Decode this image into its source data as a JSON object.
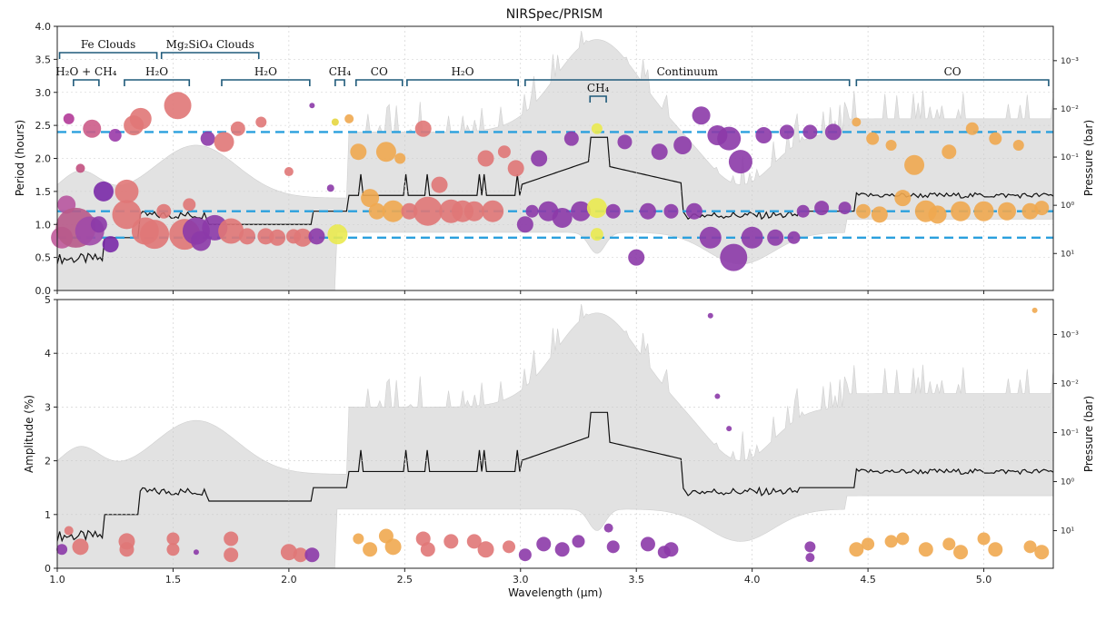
{
  "chart_data": {
    "type": "scatter",
    "title": "NIRSpec/PRISM",
    "xlabel": "Wavelength (μm)",
    "xlim": [
      1.0,
      5.3
    ],
    "x_ticks": [
      "1.0",
      "1.5",
      "2.0",
      "2.5",
      "3.0",
      "3.5",
      "4.0",
      "4.5",
      "5.0"
    ],
    "top": {
      "ylabel": "Period (hours)",
      "ylim": [
        0,
        4.0
      ],
      "y_ticks": [
        "0.0",
        "0.5",
        "1.0",
        "1.5",
        "2.0",
        "2.5",
        "3.0",
        "3.5",
        "4.0"
      ],
      "right_label": "Pressure (bar)",
      "right_ticks": [
        "10⁻³",
        "10⁻²",
        "10⁻¹",
        "10⁰",
        "10¹"
      ],
      "dashed_lines": [
        2.4,
        1.2,
        0.8
      ],
      "regions": [
        {
          "label": "Fe Clouds",
          "x0": 1.01,
          "x1": 1.43,
          "tier": 1
        },
        {
          "label": "Mg₂SiO₄ Clouds",
          "x0": 1.45,
          "x1": 1.87,
          "tier": 1
        },
        {
          "label": "H₂O + CH₄",
          "x0": 1.07,
          "x1": 1.18,
          "tier": 2
        },
        {
          "label": "H₂O",
          "x0": 1.29,
          "x1": 1.57,
          "tier": 2
        },
        {
          "label": "H₂O",
          "x0": 1.71,
          "x1": 2.09,
          "tier": 2
        },
        {
          "label": "CH₄",
          "x0": 2.2,
          "x1": 2.24,
          "tier": 2
        },
        {
          "label": "CO",
          "x0": 2.29,
          "x1": 2.49,
          "tier": 2
        },
        {
          "label": "H₂O",
          "x0": 2.51,
          "x1": 2.99,
          "tier": 2
        },
        {
          "label": "Continuum",
          "x0": 3.02,
          "x1": 4.42,
          "tier": 2
        },
        {
          "label": "CO",
          "x0": 4.45,
          "x1": 5.28,
          "tier": 2
        },
        {
          "label": "CH₄",
          "x0": 3.3,
          "x1": 3.37,
          "tier": 3
        }
      ],
      "points": [
        [
          1.02,
          0.8,
          12,
          "#c05a9a"
        ],
        [
          1.04,
          1.3,
          10,
          "#b856a0"
        ],
        [
          1.05,
          2.6,
          6,
          "#b23a98"
        ],
        [
          1.08,
          0.95,
          22,
          "#b85a8a"
        ],
        [
          1.1,
          1.85,
          5,
          "#c2507f"
        ],
        [
          1.14,
          0.9,
          16,
          "#a04aa8"
        ],
        [
          1.15,
          2.45,
          10,
          "#cc5c88"
        ],
        [
          1.18,
          1.0,
          9,
          "#8c3aa8"
        ],
        [
          1.2,
          1.5,
          11,
          "#7a2aa8"
        ],
        [
          1.23,
          0.7,
          9,
          "#7a2aa8"
        ],
        [
          1.25,
          2.35,
          7,
          "#9a3aa8"
        ],
        [
          1.3,
          1.15,
          16,
          "#e07777"
        ],
        [
          1.3,
          1.5,
          13,
          "#e07777"
        ],
        [
          1.33,
          2.5,
          11,
          "#e07777"
        ],
        [
          1.36,
          2.6,
          12,
          "#e07777"
        ],
        [
          1.38,
          0.9,
          15,
          "#e07777"
        ],
        [
          1.42,
          0.85,
          16,
          "#e07777"
        ],
        [
          1.46,
          1.2,
          8,
          "#e07777"
        ],
        [
          1.52,
          2.8,
          15,
          "#e07777"
        ],
        [
          1.55,
          0.85,
          17,
          "#e07777"
        ],
        [
          1.57,
          1.3,
          7,
          "#e07777"
        ],
        [
          1.6,
          0.9,
          15,
          "#8c3aa8"
        ],
        [
          1.62,
          0.75,
          11,
          "#8c3aa8"
        ],
        [
          1.65,
          2.3,
          8,
          "#8c3aa8"
        ],
        [
          1.68,
          0.95,
          14,
          "#8c3aa8"
        ],
        [
          1.72,
          2.25,
          11,
          "#e07777"
        ],
        [
          1.75,
          0.9,
          14,
          "#e07777"
        ],
        [
          1.78,
          2.45,
          8,
          "#e07777"
        ],
        [
          1.82,
          0.82,
          9,
          "#e07777"
        ],
        [
          1.88,
          2.55,
          6,
          "#e07777"
        ],
        [
          1.9,
          0.82,
          9,
          "#e07777"
        ],
        [
          1.95,
          0.8,
          9,
          "#e07777"
        ],
        [
          2.0,
          1.8,
          5,
          "#e07777"
        ],
        [
          2.02,
          0.82,
          8,
          "#e07777"
        ],
        [
          2.06,
          0.8,
          10,
          "#e07777"
        ],
        [
          2.1,
          2.8,
          3,
          "#8c3aa8"
        ],
        [
          2.12,
          0.82,
          9,
          "#8c3aa8"
        ],
        [
          2.18,
          1.55,
          4,
          "#8c3aa8"
        ],
        [
          2.2,
          2.55,
          4,
          "#e6d640"
        ],
        [
          2.21,
          0.85,
          11,
          "#eaea50"
        ],
        [
          2.26,
          2.6,
          5,
          "#f0a850"
        ],
        [
          2.3,
          2.1,
          9,
          "#f0a850"
        ],
        [
          2.35,
          1.4,
          10,
          "#f0a850"
        ],
        [
          2.38,
          1.2,
          9,
          "#f0a850"
        ],
        [
          2.42,
          2.1,
          11,
          "#f0a850"
        ],
        [
          2.45,
          1.2,
          12,
          "#f0a850"
        ],
        [
          2.48,
          2.0,
          6,
          "#f0a850"
        ],
        [
          2.52,
          1.2,
          9,
          "#e07777"
        ],
        [
          2.58,
          2.45,
          9,
          "#e07777"
        ],
        [
          2.6,
          1.2,
          16,
          "#e07777"
        ],
        [
          2.65,
          1.6,
          9,
          "#e07777"
        ],
        [
          2.7,
          1.2,
          13,
          "#e07777"
        ],
        [
          2.75,
          1.2,
          12,
          "#e07777"
        ],
        [
          2.8,
          1.2,
          11,
          "#e07777"
        ],
        [
          2.85,
          2.0,
          9,
          "#e07777"
        ],
        [
          2.88,
          1.2,
          12,
          "#e07777"
        ],
        [
          2.93,
          2.1,
          7,
          "#e07777"
        ],
        [
          2.98,
          1.85,
          9,
          "#e07777"
        ],
        [
          3.02,
          1.0,
          9,
          "#8c3aa8"
        ],
        [
          3.05,
          1.2,
          7,
          "#8c3aa8"
        ],
        [
          3.08,
          2.0,
          9,
          "#8c3aa8"
        ],
        [
          3.12,
          1.2,
          11,
          "#8c3aa8"
        ],
        [
          3.18,
          1.1,
          11,
          "#8c3aa8"
        ],
        [
          3.22,
          2.3,
          8,
          "#8c3aa8"
        ],
        [
          3.26,
          1.2,
          11,
          "#8c3aa8"
        ],
        [
          3.33,
          1.25,
          11,
          "#eaea50"
        ],
        [
          3.33,
          0.85,
          7,
          "#eaea50"
        ],
        [
          3.33,
          2.45,
          6,
          "#eaea50"
        ],
        [
          3.4,
          1.2,
          8,
          "#8c3aa8"
        ],
        [
          3.45,
          2.25,
          8,
          "#8c3aa8"
        ],
        [
          3.5,
          0.5,
          9,
          "#8c3aa8"
        ],
        [
          3.55,
          1.2,
          9,
          "#8c3aa8"
        ],
        [
          3.6,
          2.1,
          9,
          "#8c3aa8"
        ],
        [
          3.65,
          1.2,
          8,
          "#8c3aa8"
        ],
        [
          3.7,
          2.2,
          10,
          "#8c3aa8"
        ],
        [
          3.75,
          1.2,
          9,
          "#8c3aa8"
        ],
        [
          3.78,
          2.65,
          10,
          "#8c3aa8"
        ],
        [
          3.82,
          0.8,
          12,
          "#8c3aa8"
        ],
        [
          3.85,
          2.35,
          11,
          "#8c3aa8"
        ],
        [
          3.9,
          2.3,
          13,
          "#8c3aa8"
        ],
        [
          3.95,
          1.95,
          13,
          "#8c3aa8"
        ],
        [
          3.92,
          0.5,
          15,
          "#8c3aa8"
        ],
        [
          4.0,
          0.8,
          12,
          "#8c3aa8"
        ],
        [
          4.05,
          2.35,
          9,
          "#8c3aa8"
        ],
        [
          4.1,
          0.8,
          9,
          "#8c3aa8"
        ],
        [
          4.15,
          2.4,
          8,
          "#8c3aa8"
        ],
        [
          4.18,
          0.8,
          7,
          "#8c3aa8"
        ],
        [
          4.22,
          1.2,
          7,
          "#8c3aa8"
        ],
        [
          4.25,
          2.4,
          8,
          "#8c3aa8"
        ],
        [
          4.3,
          1.25,
          8,
          "#8c3aa8"
        ],
        [
          4.35,
          2.4,
          9,
          "#8c3aa8"
        ],
        [
          4.4,
          1.25,
          7,
          "#8c3aa8"
        ],
        [
          4.45,
          2.55,
          5,
          "#f0a850"
        ],
        [
          4.48,
          1.2,
          8,
          "#f0a850"
        ],
        [
          4.52,
          2.3,
          7,
          "#f0a850"
        ],
        [
          4.55,
          1.15,
          9,
          "#f0a850"
        ],
        [
          4.6,
          2.2,
          6,
          "#f0a850"
        ],
        [
          4.65,
          1.4,
          9,
          "#f0a850"
        ],
        [
          4.7,
          1.9,
          11,
          "#f0a850"
        ],
        [
          4.75,
          1.2,
          12,
          "#f0a850"
        ],
        [
          4.8,
          1.15,
          10,
          "#f0a850"
        ],
        [
          4.85,
          2.1,
          8,
          "#f0a850"
        ],
        [
          4.9,
          1.2,
          11,
          "#f0a850"
        ],
        [
          4.95,
          2.45,
          7,
          "#f0a850"
        ],
        [
          5.0,
          1.2,
          11,
          "#f0a850"
        ],
        [
          5.05,
          2.3,
          7,
          "#f0a850"
        ],
        [
          5.1,
          1.2,
          10,
          "#f0a850"
        ],
        [
          5.15,
          2.2,
          6,
          "#f0a850"
        ],
        [
          5.2,
          1.2,
          9,
          "#f0a850"
        ],
        [
          5.25,
          1.25,
          8,
          "#f0a850"
        ]
      ]
    },
    "bottom": {
      "ylabel": "Amplitude (%)",
      "ylim": [
        0,
        5
      ],
      "y_ticks": [
        "0",
        "1",
        "2",
        "3",
        "4",
        "5"
      ],
      "right_label": "Pressure (bar)",
      "right_ticks": [
        "10⁻³",
        "10⁻²",
        "10⁻¹",
        "10⁰",
        "10¹"
      ],
      "points": [
        [
          1.02,
          0.35,
          6,
          "#8c3aa8"
        ],
        [
          1.05,
          0.7,
          5,
          "#e07777"
        ],
        [
          1.1,
          0.4,
          9,
          "#e07777"
        ],
        [
          1.3,
          0.5,
          9,
          "#e07777"
        ],
        [
          1.3,
          0.35,
          8,
          "#e07777"
        ],
        [
          1.5,
          0.55,
          7,
          "#e07777"
        ],
        [
          1.5,
          0.35,
          7,
          "#e07777"
        ],
        [
          1.6,
          0.3,
          3,
          "#8c3aa8"
        ],
        [
          1.75,
          0.55,
          8,
          "#e07777"
        ],
        [
          1.75,
          0.25,
          8,
          "#e07777"
        ],
        [
          2.0,
          0.3,
          9,
          "#e07777"
        ],
        [
          2.05,
          0.25,
          8,
          "#e07777"
        ],
        [
          2.1,
          0.25,
          8,
          "#8c3aa8"
        ],
        [
          2.3,
          0.55,
          6,
          "#f0a850"
        ],
        [
          2.35,
          0.35,
          8,
          "#f0a850"
        ],
        [
          2.42,
          0.6,
          8,
          "#f0a850"
        ],
        [
          2.45,
          0.4,
          9,
          "#f0a850"
        ],
        [
          2.58,
          0.55,
          8,
          "#e07777"
        ],
        [
          2.6,
          0.35,
          8,
          "#e07777"
        ],
        [
          2.7,
          0.5,
          8,
          "#e07777"
        ],
        [
          2.8,
          0.5,
          8,
          "#e07777"
        ],
        [
          2.85,
          0.35,
          9,
          "#e07777"
        ],
        [
          2.95,
          0.4,
          7,
          "#e07777"
        ],
        [
          3.02,
          0.25,
          7,
          "#8c3aa8"
        ],
        [
          3.1,
          0.45,
          8,
          "#8c3aa8"
        ],
        [
          3.18,
          0.35,
          8,
          "#8c3aa8"
        ],
        [
          3.25,
          0.5,
          7,
          "#8c3aa8"
        ],
        [
          3.38,
          0.75,
          5,
          "#8c3aa8"
        ],
        [
          3.4,
          0.4,
          7,
          "#8c3aa8"
        ],
        [
          3.55,
          0.45,
          8,
          "#8c3aa8"
        ],
        [
          3.62,
          0.3,
          7,
          "#8c3aa8"
        ],
        [
          3.65,
          0.35,
          8,
          "#8c3aa8"
        ],
        [
          3.82,
          4.7,
          3,
          "#8c3aa8"
        ],
        [
          3.85,
          3.2,
          3,
          "#8c3aa8"
        ],
        [
          3.9,
          2.6,
          3,
          "#8c3aa8"
        ],
        [
          4.25,
          0.4,
          6,
          "#8c3aa8"
        ],
        [
          4.25,
          0.2,
          5,
          "#8c3aa8"
        ],
        [
          4.45,
          0.35,
          8,
          "#f0a850"
        ],
        [
          4.5,
          0.45,
          7,
          "#f0a850"
        ],
        [
          4.6,
          0.5,
          7,
          "#f0a850"
        ],
        [
          4.65,
          0.55,
          7,
          "#f0a850"
        ],
        [
          4.75,
          0.35,
          8,
          "#f0a850"
        ],
        [
          4.85,
          0.45,
          7,
          "#f0a850"
        ],
        [
          4.9,
          0.3,
          8,
          "#f0a850"
        ],
        [
          5.0,
          0.55,
          7,
          "#f0a850"
        ],
        [
          5.05,
          0.35,
          8,
          "#f0a850"
        ],
        [
          5.2,
          0.4,
          7,
          "#f0a850"
        ],
        [
          5.25,
          0.3,
          8,
          "#f0a850"
        ],
        [
          5.22,
          4.8,
          3,
          "#f0a850"
        ]
      ]
    }
  }
}
